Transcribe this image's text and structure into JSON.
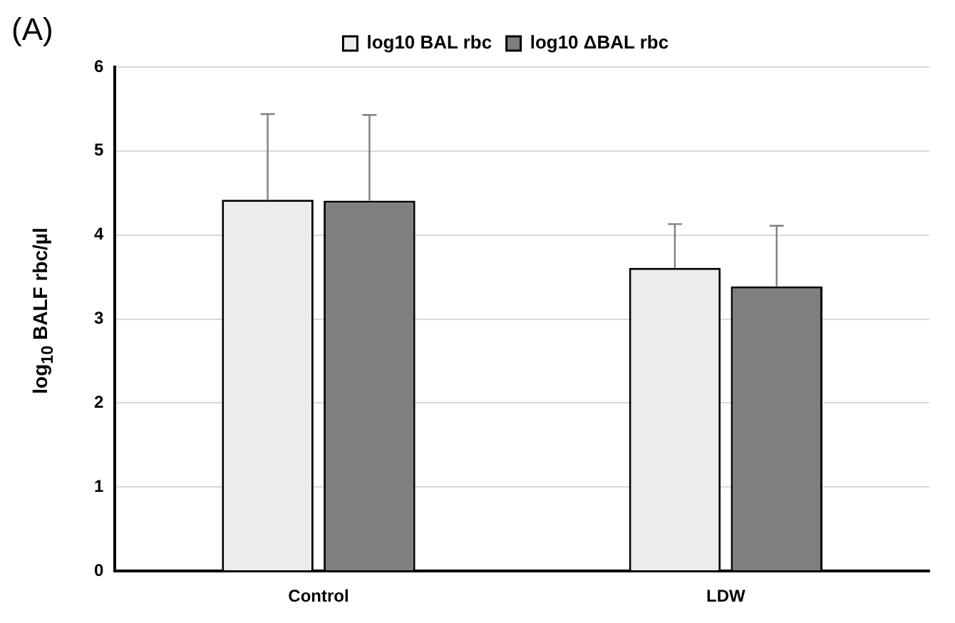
{
  "chart_data": {
    "type": "bar",
    "ylabel": "log$_{10}$ BALF rbc/µl",
    "annotations": [
      "(A)"
    ],
    "categories": [
      "Control",
      "LDW"
    ],
    "series": [
      {
        "name": "log10 BAL rbc",
        "color": "#ececec",
        "values": [
          4.42,
          3.61
        ],
        "errors": [
          [
            4.42,
            5.44
          ],
          [
            3.61,
            4.13
          ]
        ]
      },
      {
        "name": "log10 ΔBAL rbc",
        "color": "#7f7f7f",
        "values": [
          4.41,
          3.39
        ],
        "errors": [
          [
            4.41,
            5.43
          ],
          [
            3.39,
            4.11
          ]
        ]
      }
    ],
    "ylim": [
      0,
      6
    ],
    "yticks": [
      0,
      1,
      2,
      3,
      4,
      5,
      6
    ],
    "grid": "y",
    "legend": "top"
  }
}
